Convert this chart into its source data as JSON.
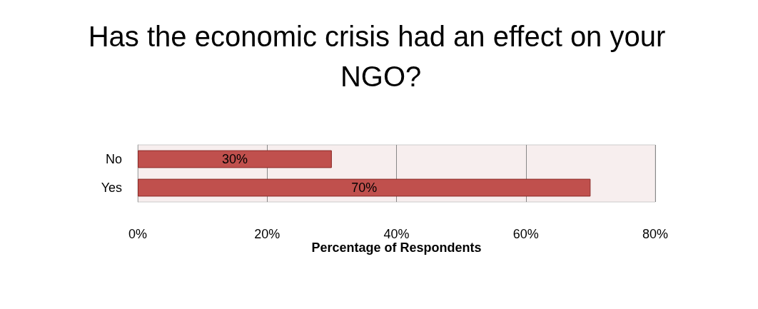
{
  "chart_data": {
    "type": "bar",
    "orientation": "horizontal",
    "title": "Has the economic crisis had an effect on your NGO?",
    "xlabel": "Percentage of Respondents",
    "categories": [
      "No",
      "Yes"
    ],
    "values": [
      30,
      70
    ],
    "color": "#c0504d",
    "value_labels": [
      "30%",
      "70%"
    ],
    "xlim": [
      0,
      80
    ],
    "xticks": [
      {
        "value": 0,
        "label": "0%"
      },
      {
        "value": 20,
        "label": "20%"
      },
      {
        "value": 40,
        "label": "40%"
      },
      {
        "value": 60,
        "label": "60%"
      },
      {
        "value": 80,
        "label": "80%"
      }
    ],
    "grid": "x"
  }
}
